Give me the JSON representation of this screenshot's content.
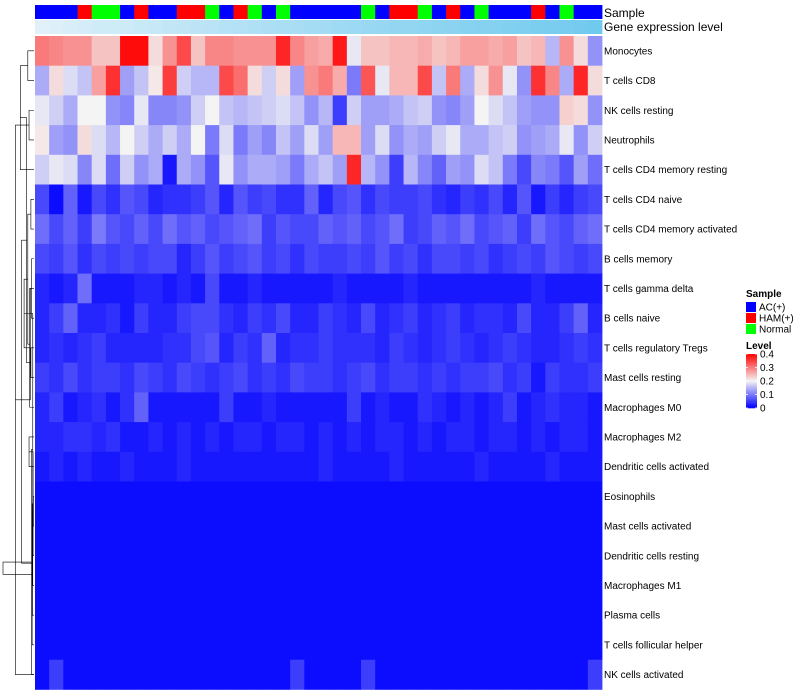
{
  "chart_data": {
    "type": "heatmap",
    "title": "",
    "annotation_labels": {
      "sample": "Sample",
      "expression": "Gene expression level"
    },
    "sample_groups": [
      "AC(+)",
      "AC(+)",
      "AC(+)",
      "HAM(+)",
      "Normal",
      "Normal",
      "AC(+)",
      "HAM(+)",
      "AC(+)",
      "AC(+)",
      "HAM(+)",
      "HAM(+)",
      "Normal",
      "AC(+)",
      "HAM(+)",
      "Normal",
      "AC(+)",
      "Normal",
      "AC(+)",
      "AC(+)",
      "AC(+)",
      "AC(+)",
      "AC(+)",
      "Normal",
      "AC(+)",
      "HAM(+)",
      "HAM(+)",
      "Normal",
      "AC(+)",
      "HAM(+)",
      "AC(+)",
      "Normal",
      "AC(+)",
      "AC(+)",
      "AC(+)",
      "HAM(+)",
      "AC(+)",
      "Normal",
      "AC(+)",
      "AC(+)"
    ],
    "expression_level_shades": [
      0.05,
      0.08,
      0.12,
      0.15,
      0.18,
      0.2,
      0.22,
      0.25,
      0.27,
      0.3,
      0.32,
      0.35,
      0.37,
      0.4,
      0.42,
      0.45,
      0.48,
      0.5,
      0.52,
      0.55,
      0.57,
      0.6,
      0.62,
      0.64,
      0.66,
      0.68,
      0.7,
      0.72,
      0.74,
      0.76,
      0.78,
      0.8,
      0.82,
      0.84,
      0.86,
      0.88,
      0.9,
      0.92,
      0.95,
      0.98
    ],
    "rows": [
      "Monocytes",
      "T cells CD8",
      "NK cells resting",
      "Neutrophils",
      "T cells CD4 memory resting",
      "T cells CD4 naive",
      "T cells CD4 memory activated",
      "B cells memory",
      "T cells gamma delta",
      "B cells naive",
      "T cells regulatory  Tregs",
      "Mast cells resting",
      "Macrophages M0",
      "Macrophages M2",
      "Dendritic cells activated",
      "Eosinophils",
      "Mast cells activated",
      "Dendritic cells resting",
      "Macrophages M1",
      "Plasma cells",
      "T cells follicular helper",
      "NK cells activated"
    ],
    "values": [
      [
        0.3,
        0.29,
        0.28,
        0.28,
        0.24,
        0.24,
        0.39,
        0.39,
        0.22,
        0.28,
        0.34,
        0.24,
        0.29,
        0.29,
        0.28,
        0.28,
        0.28,
        0.37,
        0.29,
        0.27,
        0.26,
        0.38,
        0.19,
        0.24,
        0.24,
        0.25,
        0.25,
        0.26,
        0.24,
        0.25,
        0.27,
        0.27,
        0.26,
        0.27,
        0.24,
        0.25,
        0.15,
        0.28,
        0.22,
        0.12
      ],
      [
        0.14,
        0.22,
        0.18,
        0.16,
        0.27,
        0.36,
        0.13,
        0.16,
        0.21,
        0.35,
        0.17,
        0.15,
        0.15,
        0.34,
        0.31,
        0.22,
        0.17,
        0.22,
        0.13,
        0.28,
        0.3,
        0.26,
        0.1,
        0.33,
        0.19,
        0.25,
        0.25,
        0.34,
        0.16,
        0.3,
        0.14,
        0.22,
        0.28,
        0.19,
        0.12,
        0.36,
        0.29,
        0.14,
        0.37,
        0.22
      ],
      [
        0.19,
        0.17,
        0.14,
        0.2,
        0.2,
        0.12,
        0.11,
        0.19,
        0.11,
        0.11,
        0.12,
        0.17,
        0.2,
        0.16,
        0.15,
        0.16,
        0.17,
        0.18,
        0.16,
        0.12,
        0.15,
        0.05,
        0.17,
        0.13,
        0.13,
        0.14,
        0.16,
        0.17,
        0.12,
        0.11,
        0.13,
        0.2,
        0.18,
        0.16,
        0.13,
        0.12,
        0.12,
        0.23,
        0.22,
        0.12
      ],
      [
        0.21,
        0.13,
        0.12,
        0.22,
        0.18,
        0.15,
        0.2,
        0.17,
        0.14,
        0.17,
        0.14,
        0.2,
        0.1,
        0.18,
        0.1,
        0.13,
        0.11,
        0.16,
        0.13,
        0.18,
        0.13,
        0.25,
        0.25,
        0.13,
        0.18,
        0.12,
        0.14,
        0.13,
        0.17,
        0.19,
        0.14,
        0.14,
        0.16,
        0.17,
        0.12,
        0.13,
        0.14,
        0.19,
        0.12,
        0.17
      ],
      [
        0.17,
        0.19,
        0.18,
        0.11,
        0.18,
        0.09,
        0.17,
        0.12,
        0.14,
        0.02,
        0.14,
        0.12,
        0.07,
        0.19,
        0.12,
        0.14,
        0.14,
        0.13,
        0.1,
        0.14,
        0.16,
        0.13,
        0.37,
        0.15,
        0.12,
        0.05,
        0.15,
        0.11,
        0.08,
        0.13,
        0.12,
        0.18,
        0.16,
        0.1,
        0.06,
        0.11,
        0.1,
        0.07,
        0.13,
        0.09
      ],
      [
        0.06,
        0.01,
        0.08,
        0.02,
        0.06,
        0.04,
        0.07,
        0.06,
        0.03,
        0.04,
        0.04,
        0.05,
        0.07,
        0.03,
        0.07,
        0.05,
        0.06,
        0.04,
        0.04,
        0.08,
        0.03,
        0.06,
        0.07,
        0.04,
        0.06,
        0.05,
        0.05,
        0.06,
        0.04,
        0.03,
        0.05,
        0.04,
        0.06,
        0.03,
        0.07,
        0.02,
        0.05,
        0.03,
        0.05,
        0.06
      ],
      [
        0.09,
        0.06,
        0.08,
        0.05,
        0.1,
        0.07,
        0.06,
        0.08,
        0.06,
        0.09,
        0.07,
        0.08,
        0.06,
        0.07,
        0.08,
        0.09,
        0.05,
        0.07,
        0.06,
        0.06,
        0.08,
        0.07,
        0.08,
        0.06,
        0.07,
        0.09,
        0.05,
        0.06,
        0.08,
        0.07,
        0.09,
        0.06,
        0.07,
        0.08,
        0.05,
        0.09,
        0.07,
        0.06,
        0.08,
        0.09
      ],
      [
        0.06,
        0.05,
        0.07,
        0.04,
        0.06,
        0.05,
        0.06,
        0.05,
        0.06,
        0.06,
        0.03,
        0.05,
        0.07,
        0.05,
        0.06,
        0.07,
        0.05,
        0.06,
        0.04,
        0.06,
        0.05,
        0.05,
        0.06,
        0.05,
        0.07,
        0.05,
        0.06,
        0.04,
        0.06,
        0.06,
        0.05,
        0.06,
        0.04,
        0.05,
        0.06,
        0.05,
        0.07,
        0.06,
        0.05,
        0.06
      ],
      [
        0.03,
        0.02,
        0.03,
        0.09,
        0.02,
        0.02,
        0.02,
        0.03,
        0.03,
        0.02,
        0.03,
        0.02,
        0.06,
        0.02,
        0.02,
        0.03,
        0.02,
        0.02,
        0.02,
        0.02,
        0.02,
        0.03,
        0.02,
        0.02,
        0.02,
        0.02,
        0.03,
        0.02,
        0.02,
        0.02,
        0.02,
        0.02,
        0.02,
        0.02,
        0.02,
        0.03,
        0.02,
        0.02,
        0.02,
        0.02
      ],
      [
        0.03,
        0.05,
        0.08,
        0.03,
        0.03,
        0.04,
        0.02,
        0.05,
        0.03,
        0.03,
        0.05,
        0.06,
        0.06,
        0.04,
        0.03,
        0.05,
        0.04,
        0.06,
        0.03,
        0.03,
        0.05,
        0.04,
        0.03,
        0.06,
        0.03,
        0.04,
        0.05,
        0.03,
        0.04,
        0.05,
        0.03,
        0.04,
        0.04,
        0.03,
        0.06,
        0.03,
        0.03,
        0.05,
        0.08,
        0.03
      ],
      [
        0.03,
        0.04,
        0.03,
        0.04,
        0.05,
        0.03,
        0.03,
        0.03,
        0.03,
        0.04,
        0.04,
        0.06,
        0.07,
        0.03,
        0.05,
        0.04,
        0.08,
        0.03,
        0.04,
        0.04,
        0.05,
        0.04,
        0.04,
        0.04,
        0.03,
        0.05,
        0.04,
        0.03,
        0.04,
        0.05,
        0.04,
        0.03,
        0.04,
        0.05,
        0.04,
        0.03,
        0.03,
        0.04,
        0.05,
        0.04
      ],
      [
        0.05,
        0.04,
        0.06,
        0.04,
        0.05,
        0.05,
        0.04,
        0.06,
        0.05,
        0.04,
        0.06,
        0.05,
        0.04,
        0.05,
        0.06,
        0.04,
        0.05,
        0.04,
        0.06,
        0.05,
        0.05,
        0.04,
        0.05,
        0.06,
        0.04,
        0.05,
        0.05,
        0.04,
        0.05,
        0.04,
        0.05,
        0.05,
        0.06,
        0.04,
        0.05,
        0.02,
        0.05,
        0.04,
        0.04,
        0.05
      ],
      [
        0.03,
        0.05,
        0.02,
        0.03,
        0.04,
        0.02,
        0.04,
        0.08,
        0.02,
        0.02,
        0.02,
        0.02,
        0.02,
        0.05,
        0.02,
        0.02,
        0.03,
        0.02,
        0.02,
        0.02,
        0.02,
        0.02,
        0.05,
        0.02,
        0.03,
        0.02,
        0.02,
        0.04,
        0.03,
        0.02,
        0.03,
        0.02,
        0.03,
        0.05,
        0.02,
        0.03,
        0.04,
        0.03,
        0.03,
        0.02
      ],
      [
        0.03,
        0.03,
        0.04,
        0.04,
        0.03,
        0.04,
        0.02,
        0.02,
        0.03,
        0.02,
        0.03,
        0.02,
        0.03,
        0.02,
        0.03,
        0.03,
        0.02,
        0.03,
        0.03,
        0.02,
        0.03,
        0.02,
        0.03,
        0.02,
        0.03,
        0.03,
        0.02,
        0.03,
        0.02,
        0.03,
        0.03,
        0.02,
        0.03,
        0.03,
        0.02,
        0.03,
        0.02,
        0.03,
        0.03,
        0.02
      ],
      [
        0.02,
        0.03,
        0.02,
        0.03,
        0.02,
        0.02,
        0.03,
        0.02,
        0.02,
        0.02,
        0.03,
        0.02,
        0.02,
        0.02,
        0.02,
        0.02,
        0.02,
        0.02,
        0.02,
        0.02,
        0.03,
        0.02,
        0.02,
        0.02,
        0.02,
        0.03,
        0.02,
        0.02,
        0.02,
        0.02,
        0.02,
        0.03,
        0.02,
        0.02,
        0.02,
        0.02,
        0.03,
        0.02,
        0.02,
        0.02
      ],
      [
        0.01,
        0.01,
        0.01,
        0.01,
        0.01,
        0.01,
        0.01,
        0.01,
        0.01,
        0.01,
        0.01,
        0.01,
        0.01,
        0.01,
        0.01,
        0.01,
        0.01,
        0.01,
        0.01,
        0.01,
        0.01,
        0.01,
        0.01,
        0.01,
        0.01,
        0.01,
        0.01,
        0.01,
        0.01,
        0.01,
        0.01,
        0.01,
        0.01,
        0.01,
        0.01,
        0.01,
        0.01,
        0.01,
        0.01,
        0.01
      ],
      [
        0.01,
        0.01,
        0.01,
        0.01,
        0.01,
        0.01,
        0.01,
        0.01,
        0.01,
        0.01,
        0.01,
        0.01,
        0.01,
        0.01,
        0.01,
        0.01,
        0.01,
        0.01,
        0.01,
        0.01,
        0.01,
        0.01,
        0.01,
        0.01,
        0.01,
        0.01,
        0.01,
        0.01,
        0.01,
        0.01,
        0.01,
        0.01,
        0.01,
        0.01,
        0.01,
        0.01,
        0.01,
        0.01,
        0.01,
        0.01
      ],
      [
        0.01,
        0.01,
        0.01,
        0.01,
        0.01,
        0.01,
        0.01,
        0.01,
        0.01,
        0.01,
        0.01,
        0.01,
        0.01,
        0.01,
        0.01,
        0.01,
        0.01,
        0.01,
        0.01,
        0.01,
        0.01,
        0.01,
        0.01,
        0.01,
        0.01,
        0.01,
        0.01,
        0.01,
        0.01,
        0.01,
        0.01,
        0.01,
        0.01,
        0.01,
        0.01,
        0.01,
        0.01,
        0.01,
        0.01,
        0.01
      ],
      [
        0.01,
        0.01,
        0.01,
        0.01,
        0.01,
        0.01,
        0.01,
        0.01,
        0.01,
        0.01,
        0.01,
        0.01,
        0.01,
        0.01,
        0.01,
        0.01,
        0.01,
        0.01,
        0.01,
        0.01,
        0.01,
        0.01,
        0.01,
        0.01,
        0.01,
        0.01,
        0.01,
        0.01,
        0.01,
        0.01,
        0.01,
        0.01,
        0.01,
        0.01,
        0.01,
        0.01,
        0.01,
        0.01,
        0.01,
        0.01
      ],
      [
        0.01,
        0.01,
        0.01,
        0.01,
        0.01,
        0.01,
        0.01,
        0.01,
        0.01,
        0.01,
        0.01,
        0.01,
        0.01,
        0.01,
        0.01,
        0.01,
        0.01,
        0.01,
        0.01,
        0.01,
        0.01,
        0.01,
        0.01,
        0.01,
        0.01,
        0.01,
        0.01,
        0.01,
        0.01,
        0.01,
        0.01,
        0.01,
        0.01,
        0.01,
        0.01,
        0.01,
        0.01,
        0.01,
        0.01,
        0.01
      ],
      [
        0.01,
        0.01,
        0.01,
        0.01,
        0.01,
        0.01,
        0.01,
        0.01,
        0.01,
        0.01,
        0.01,
        0.01,
        0.01,
        0.01,
        0.01,
        0.01,
        0.01,
        0.01,
        0.01,
        0.01,
        0.01,
        0.01,
        0.01,
        0.01,
        0.01,
        0.01,
        0.01,
        0.01,
        0.01,
        0.01,
        0.01,
        0.01,
        0.01,
        0.01,
        0.01,
        0.01,
        0.01,
        0.01,
        0.01,
        0.01
      ],
      [
        0.01,
        0.05,
        0.01,
        0.01,
        0.01,
        0.01,
        0.01,
        0.01,
        0.01,
        0.01,
        0.01,
        0.01,
        0.01,
        0.01,
        0.01,
        0.01,
        0.01,
        0.01,
        0.05,
        0.01,
        0.01,
        0.01,
        0.01,
        0.05,
        0.01,
        0.01,
        0.01,
        0.01,
        0.01,
        0.01,
        0.01,
        0.01,
        0.01,
        0.01,
        0.01,
        0.01,
        0.01,
        0.01,
        0.01,
        0.05
      ]
    ],
    "color_scale": {
      "low": "#0000ff",
      "mid": "#f4f4f4",
      "high": "#ff0000",
      "min": 0,
      "mid_value": 0.2,
      "max": 0.4
    },
    "legend": {
      "sample_title": "Sample",
      "sample_entries": [
        {
          "label": "AC(+)",
          "color": "#0000ff"
        },
        {
          "label": "HAM(+)",
          "color": "#ff0000"
        },
        {
          "label": "Normal",
          "color": "#00ff00"
        }
      ],
      "level_title": "Level",
      "level_ticks": [
        {
          "value": 0.4,
          "label": "0.4"
        },
        {
          "value": 0.3,
          "label": "0.3"
        },
        {
          "value": 0.2,
          "label": "0.2"
        },
        {
          "value": 0.1,
          "label": "0.1"
        },
        {
          "value": 0,
          "label": "0"
        }
      ],
      "expression_low_color": "#e6f3fa",
      "expression_high_color": "#6ec9ee"
    },
    "row_dendrogram": [
      [
        1,
        2,
        0.1
      ],
      [
        3,
        4,
        0.08
      ],
      [
        23,
        5,
        0.22
      ],
      [
        22,
        24,
        0.3
      ],
      [
        6,
        7,
        0.05
      ],
      [
        8,
        10,
        0.04
      ],
      [
        26,
        9,
        0.06
      ],
      [
        11,
        12,
        0.05
      ],
      [
        28,
        13,
        0.07
      ],
      [
        27,
        29,
        0.1
      ],
      [
        25,
        30,
        0.12
      ],
      [
        14,
        15,
        0.08
      ],
      [
        31,
        32,
        0.16
      ],
      [
        16,
        17,
        0.01
      ],
      [
        34,
        18,
        0.015
      ],
      [
        35,
        19,
        0.02
      ],
      [
        36,
        20,
        0.025
      ],
      [
        37,
        21,
        0.03
      ],
      [
        38,
        22,
        0.04
      ],
      [
        33,
        39,
        0.2
      ],
      [
        40,
        41,
        0.5
      ]
    ]
  }
}
